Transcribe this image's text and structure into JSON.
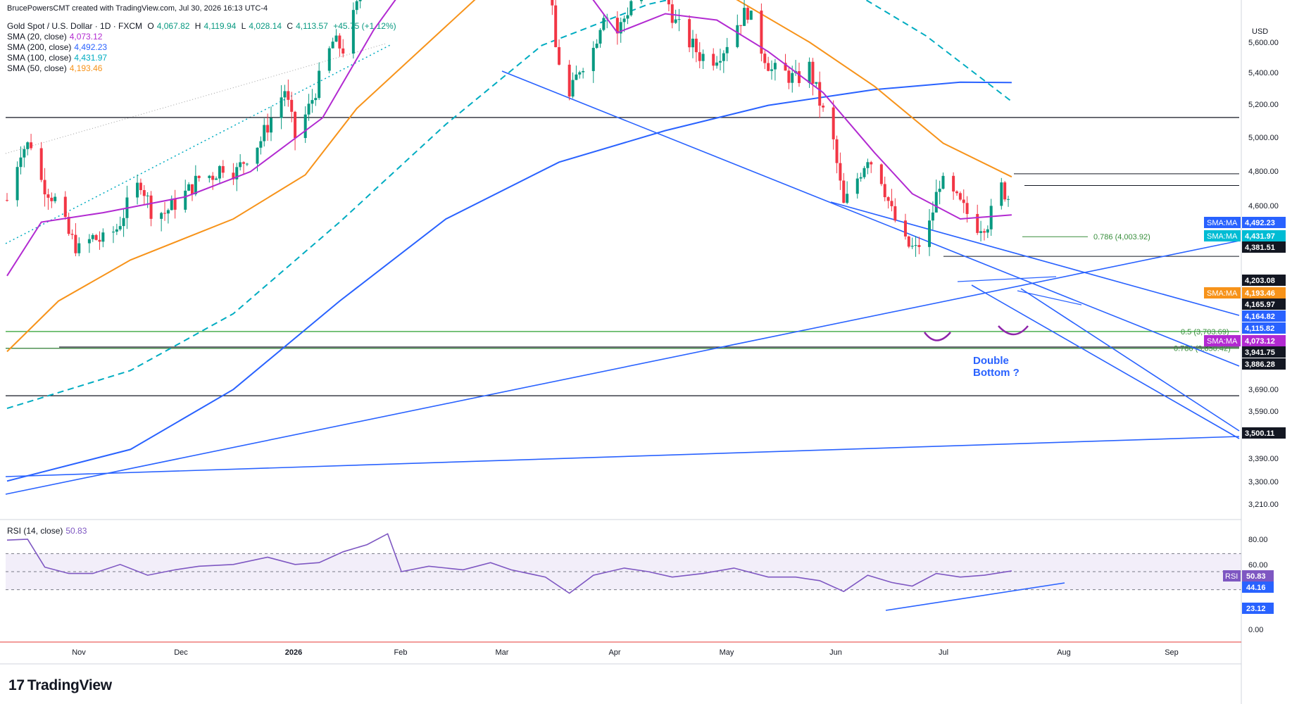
{
  "attribution": "BrucePowersCMT created with TradingView.com, Jul 30, 2026 16:13 UTC-4",
  "brand": "TradingView",
  "brand_mark": "17",
  "chart_data": [
    {
      "type": "candlestick",
      "title": "Gold Spot / U.S. Dollar · 1D · FXCM",
      "ohlc_legend": {
        "open_label": "O",
        "open": "4,067.82",
        "high_label": "H",
        "high": "4,119.94",
        "low_label": "L",
        "low": "4,028.14",
        "close_label": "C",
        "close": "4,113.57",
        "change": "+45.75 (+1.12%)"
      },
      "currency": "USD",
      "indicators": [
        {
          "name": "SMA (20, close)",
          "value": "4,073.12",
          "color": "#b22ad1"
        },
        {
          "name": "SMA (200, close)",
          "value": "4,492.23",
          "color": "#2962ff"
        },
        {
          "name": "SMA (100, close)",
          "value": "4,431.97",
          "color": "#00bcd4"
        },
        {
          "name": "SMA (50, close)",
          "value": "4,193.46",
          "color": "#f7931a"
        }
      ],
      "y_ticks": [
        "5,600.00",
        "5,400.00",
        "5,200.00",
        "5,000.00",
        "4,800.00",
        "4,600.00",
        "3,690.00",
        "3,590.00",
        "3,390.00",
        "3,300.00",
        "3,210.00"
      ],
      "x_ticks": [
        "Nov",
        "Dec",
        "2026",
        "Feb",
        "Mar",
        "Apr",
        "May",
        "Jun",
        "Jul",
        "Aug",
        "Sep"
      ],
      "price_labels": [
        {
          "text": "SMA:MA",
          "value": "4,492.23",
          "color": "#2962ff"
        },
        {
          "text": "SMA:MA",
          "value": "4,431.97",
          "color": "#00bcd4"
        },
        {
          "text": "",
          "value": "4,381.51",
          "color": "#131722"
        },
        {
          "text": "",
          "value": "4,203.08",
          "color": "#131722"
        },
        {
          "text": "SMA:MA",
          "value": "4,193.46",
          "color": "#f7931a"
        },
        {
          "text": "",
          "value": "4,165.97",
          "color": "#131722"
        },
        {
          "text": "",
          "value": "4,164.82",
          "color": "#2962ff"
        },
        {
          "text": "",
          "value": "4,115.82",
          "color": "#2962ff"
        },
        {
          "text": "SMA:MA",
          "value": "4,073.12",
          "color": "#b22ad1"
        },
        {
          "text": "",
          "value": "3,941.75",
          "color": "#131722"
        },
        {
          "text": "",
          "value": "3,886.28",
          "color": "#131722"
        },
        {
          "text": "",
          "value": "3,500.11",
          "color": "#131722"
        }
      ],
      "horizontal_levels": [
        4381.51,
        4203.08,
        4165.97,
        4003.92,
        3941.75,
        3703.69,
        3650.42,
        3500.11
      ],
      "fib_labels": [
        {
          "text": "0.786 (4,003.92)",
          "value": 4003.92
        },
        {
          "text": "0.5 (3,703.69)",
          "value": 3703.69
        },
        {
          "text": "0.786 (3,650.42)",
          "value": 3650.42
        }
      ],
      "annotation": [
        "Double",
        "Bottom ?"
      ],
      "price_path": [
        [
          "Oct 10",
          4120
        ],
        [
          "Oct 14",
          4280
        ],
        [
          "Oct 17",
          4300
        ],
        [
          "Oct 20",
          4180
        ],
        [
          "Oct 24",
          4120
        ],
        [
          "Oct 28",
          4010
        ],
        [
          "Oct 31",
          3960
        ],
        [
          "Nov 4",
          4000
        ],
        [
          "Nov 7",
          3990
        ],
        [
          "Nov 11",
          4030
        ],
        [
          "Nov 14",
          4100
        ],
        [
          "Nov 18",
          4180
        ],
        [
          "Nov 21",
          4090
        ],
        [
          "Nov 25",
          4080
        ],
        [
          "Nov 28",
          4110
        ],
        [
          "Dec 2",
          4150
        ],
        [
          "Dec 5",
          4190
        ],
        [
          "Dec 9",
          4200
        ],
        [
          "Dec 12",
          4230
        ],
        [
          "Dec 16",
          4210
        ],
        [
          "Dec 19",
          4260
        ],
        [
          "Dec 23",
          4310
        ],
        [
          "Dec 26",
          4380
        ],
        [
          "Dec 30",
          4470
        ],
        [
          "Jan 2",
          4320
        ],
        [
          "Jan 6",
          4410
        ],
        [
          "Jan 9",
          4500
        ],
        [
          "Jan 13",
          4620
        ],
        [
          "Jan 16",
          4600
        ],
        [
          "Jan 20",
          4730
        ],
        [
          "Jan 23",
          4900
        ],
        [
          "Jan 27",
          5080
        ],
        [
          "Jan 29",
          5420
        ],
        [
          "Jan 30",
          4870
        ],
        [
          "Feb 3",
          4900
        ],
        [
          "Feb 6",
          4880
        ],
        [
          "Feb 10",
          5060
        ],
        [
          "Feb 13",
          5020
        ],
        [
          "Feb 17",
          4990
        ],
        [
          "Feb 20",
          5080
        ],
        [
          "Feb 24",
          5150
        ],
        [
          "Feb 27",
          5210
        ],
        [
          "Mar 2",
          5290
        ],
        [
          "Mar 5",
          5100
        ],
        [
          "Mar 9",
          5160
        ],
        [
          "Mar 12",
          5060
        ],
        [
          "Mar 16",
          4920
        ],
        [
          "Mar 19",
          4600
        ],
        [
          "Mar 23",
          4440
        ],
        [
          "Mar 26",
          4540
        ],
        [
          "Mar 30",
          4600
        ],
        [
          "Apr 2",
          4720
        ],
        [
          "Apr 6",
          4650
        ],
        [
          "Apr 9",
          4720
        ],
        [
          "Apr 13",
          4850
        ],
        [
          "Apr 16",
          4800
        ],
        [
          "Apr 20",
          4770
        ],
        [
          "Apr 23",
          4680
        ],
        [
          "Apr 27",
          4620
        ],
        [
          "Apr 30",
          4580
        ],
        [
          "May 4",
          4570
        ],
        [
          "May 7",
          4600
        ],
        [
          "May 11",
          4680
        ],
        [
          "May 14",
          4720
        ],
        [
          "May 18",
          4600
        ],
        [
          "May 21",
          4530
        ],
        [
          "May 25",
          4520
        ],
        [
          "May 28",
          4500
        ],
        [
          "Jun 1",
          4540
        ],
        [
          "Jun 4",
          4430
        ],
        [
          "Jun 8",
          4300
        ],
        [
          "Jun 11",
          4100
        ],
        [
          "Jun 15",
          4190
        ],
        [
          "Jun 18",
          4260
        ],
        [
          "Jun 22",
          4190
        ],
        [
          "Jun 25",
          4080
        ],
        [
          "Jun 29",
          3980
        ],
        [
          "Jul 2",
          3960
        ],
        [
          "Jul 6",
          4040
        ],
        [
          "Jul 9",
          4180
        ],
        [
          "Jul 13",
          4130
        ],
        [
          "Jul 16",
          4090
        ],
        [
          "Jul 20",
          4040
        ],
        [
          "Jul 23",
          4050
        ],
        [
          "Jul 27",
          4160
        ],
        [
          "Jul 30",
          4113.57
        ]
      ],
      "sma20": [
        [
          "Oct 10",
          3880
        ],
        [
          "Oct 20",
          4050
        ],
        [
          "Nov 7",
          4080
        ],
        [
          "Dec 1",
          4130
        ],
        [
          "Dec 20",
          4210
        ],
        [
          "Jan 10",
          4380
        ],
        [
          "Jan 25",
          4660
        ],
        [
          "Feb 10",
          4900
        ],
        [
          "Feb 25",
          5000
        ],
        [
          "Mar 6",
          5090
        ],
        [
          "Mar 20",
          4900
        ],
        [
          "Apr 6",
          4650
        ],
        [
          "Apr 20",
          4710
        ],
        [
          "May 5",
          4690
        ],
        [
          "May 20",
          4590
        ],
        [
          "Jun 5",
          4460
        ],
        [
          "Jun 20",
          4270
        ],
        [
          "Jul 1",
          4140
        ],
        [
          "Jul 15",
          4060
        ],
        [
          "Jul 30",
          4073.12
        ]
      ],
      "sma50": [
        [
          "Oct 10",
          3640
        ],
        [
          "Oct 25",
          3800
        ],
        [
          "Nov 15",
          3930
        ],
        [
          "Dec 15",
          4060
        ],
        [
          "Jan 5",
          4200
        ],
        [
          "Jan 20",
          4410
        ],
        [
          "Feb 10",
          4620
        ],
        [
          "Feb 28",
          4800
        ],
        [
          "Mar 15",
          4960
        ],
        [
          "Apr 1",
          4920
        ],
        [
          "Apr 20",
          4870
        ],
        [
          "May 10",
          4760
        ],
        [
          "Jun 1",
          4620
        ],
        [
          "Jun 20",
          4480
        ],
        [
          "Jul 10",
          4300
        ],
        [
          "Jul 30",
          4193.46
        ]
      ],
      "sma100": [
        [
          "Oct 10",
          3460
        ],
        [
          "Nov 15",
          3580
        ],
        [
          "Dec 15",
          3760
        ],
        [
          "Jan 15",
          4050
        ],
        [
          "Feb 15",
          4360
        ],
        [
          "Mar 15",
          4610
        ],
        [
          "Apr 15",
          4740
        ],
        [
          "May 10",
          4800
        ],
        [
          "May 28",
          4810
        ],
        [
          "Jun 15",
          4770
        ],
        [
          "Jul 5",
          4640
        ],
        [
          "Jul 30",
          4431.97
        ]
      ],
      "sma200": [
        [
          "Oct 10",
          3230
        ],
        [
          "Nov 15",
          3330
        ],
        [
          "Dec 15",
          3520
        ],
        [
          "Jan 15",
          3800
        ],
        [
          "Feb 15",
          4060
        ],
        [
          "Mar 20",
          4240
        ],
        [
          "Apr 20",
          4340
        ],
        [
          "May 20",
          4420
        ],
        [
          "Jun 20",
          4470
        ],
        [
          "Jul 15",
          4493
        ],
        [
          "Jul 30",
          4492.23
        ]
      ]
    },
    {
      "type": "line",
      "title": "RSI (14, close)",
      "value": "50.83",
      "tag": "RSI",
      "levels": [
        70,
        50,
        30
      ],
      "y_ticks": [
        "80.00",
        "60.00",
        "0.00"
      ],
      "price_labels": [
        {
          "value": "50.83",
          "color": "#7e57c2"
        },
        {
          "value": "44.16",
          "color": "#2962ff"
        },
        {
          "value": "23.12",
          "color": "#2962ff"
        }
      ],
      "ylim": [
        0,
        100
      ],
      "path": [
        [
          "Oct 10",
          85
        ],
        [
          "Oct 16",
          86
        ],
        [
          "Oct 21",
          55
        ],
        [
          "Oct 28",
          48
        ],
        [
          "Nov 4",
          48
        ],
        [
          "Nov 12",
          58
        ],
        [
          "Nov 20",
          46
        ],
        [
          "Nov 28",
          52
        ],
        [
          "Dec 5",
          56
        ],
        [
          "Dec 15",
          58
        ],
        [
          "Dec 25",
          66
        ],
        [
          "Jan 2",
          58
        ],
        [
          "Jan 9",
          60
        ],
        [
          "Jan 16",
          72
        ],
        [
          "Jan 23",
          80
        ],
        [
          "Jan 29",
          92
        ],
        [
          "Feb 2",
          50
        ],
        [
          "Feb 10",
          56
        ],
        [
          "Feb 20",
          52
        ],
        [
          "Feb 28",
          60
        ],
        [
          "Mar 6",
          52
        ],
        [
          "Mar 16",
          44
        ],
        [
          "Mar 23",
          26
        ],
        [
          "Mar 30",
          46
        ],
        [
          "Apr 8",
          54
        ],
        [
          "Apr 15",
          50
        ],
        [
          "Apr 22",
          44
        ],
        [
          "May 1",
          48
        ],
        [
          "May 10",
          54
        ],
        [
          "May 20",
          44
        ],
        [
          "May 28",
          44
        ],
        [
          "Jun 4",
          40
        ],
        [
          "Jun 11",
          28
        ],
        [
          "Jun 18",
          46
        ],
        [
          "Jun 25",
          38
        ],
        [
          "Jul 1",
          34
        ],
        [
          "Jul 8",
          48
        ],
        [
          "Jul 15",
          44
        ],
        [
          "Jul 22",
          46
        ],
        [
          "Jul 30",
          50.83
        ]
      ]
    }
  ]
}
